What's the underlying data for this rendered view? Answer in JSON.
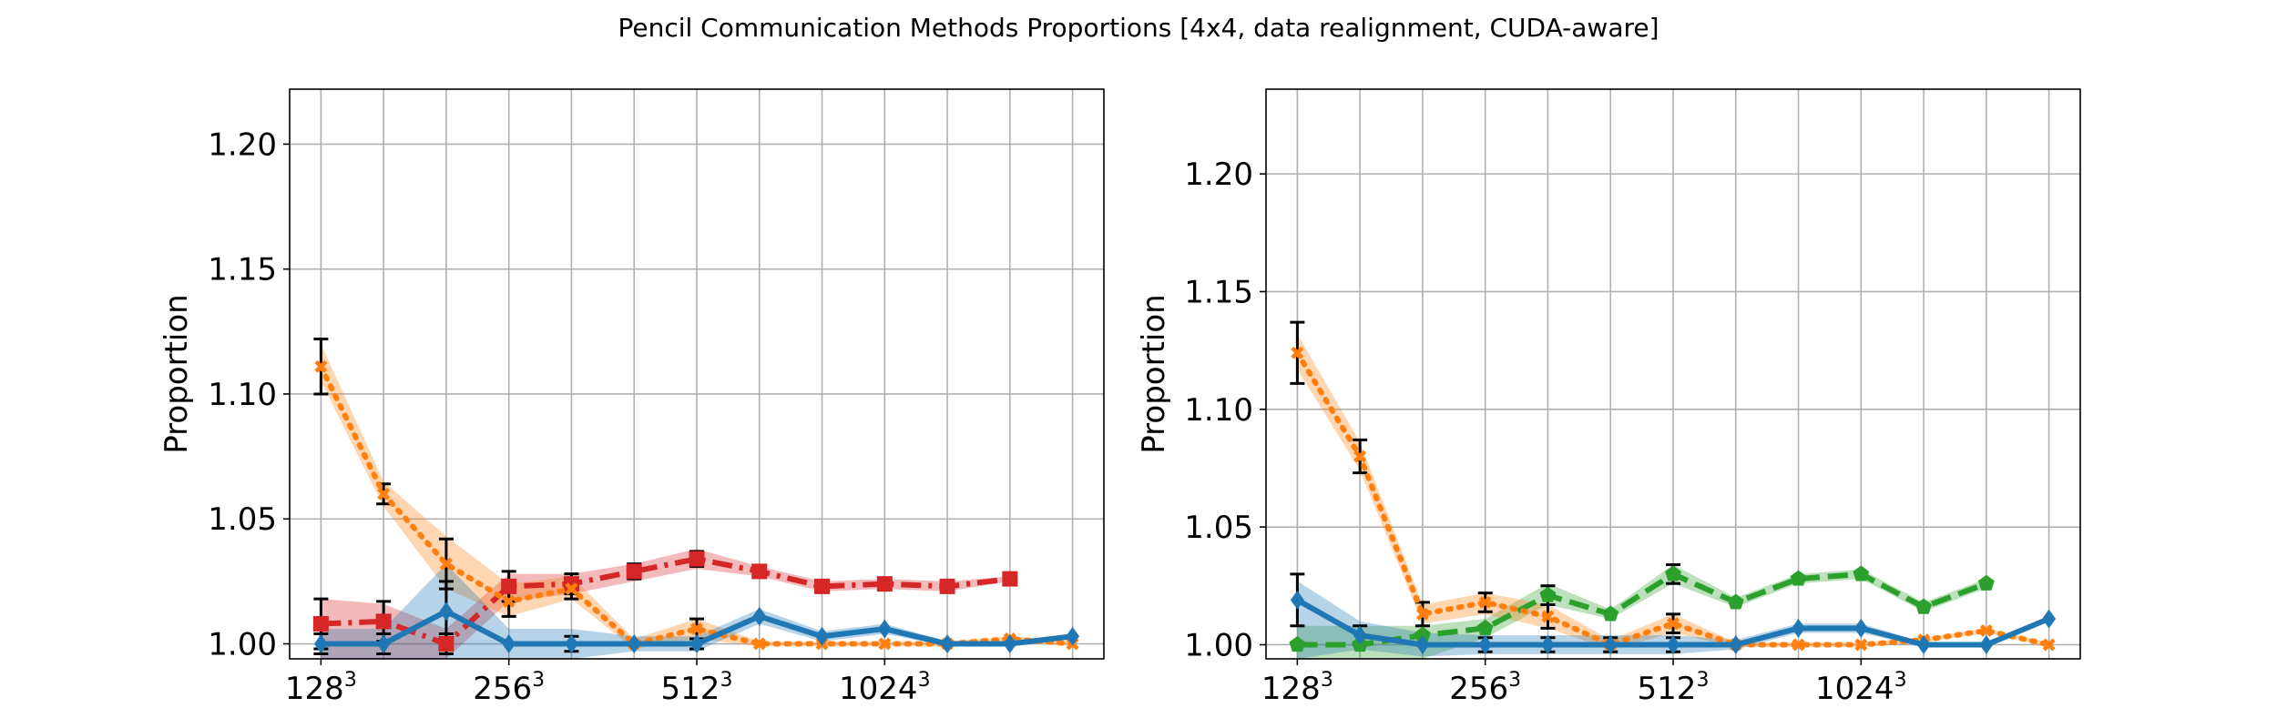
{
  "title": "Pencil Communication Methods Proportions [4x4, data realignment, CUDA-aware]",
  "chart_data": [
    {
      "type": "line",
      "ylabel": "Proportion",
      "ylim": [
        0.994,
        1.222
      ],
      "xlim": [
        -0.5,
        12.5
      ],
      "yticks": [
        "1.00",
        "1.05",
        "1.10",
        "1.15",
        "1.20"
      ],
      "ytick_values": [
        1.0,
        1.05,
        1.1,
        1.15,
        1.2
      ],
      "xticks": [
        {
          "base": "128",
          "exp": "3",
          "x": 0
        },
        {
          "base": "256",
          "exp": "3",
          "x": 3
        },
        {
          "base": "512",
          "exp": "3",
          "x": 6
        },
        {
          "base": "1024",
          "exp": "3",
          "x": 9
        }
      ],
      "grid": true,
      "series": [
        {
          "color": "#d62728",
          "linestyle": "dashdot",
          "marker": "square",
          "x": [
            0,
            1,
            2,
            3,
            4,
            5,
            6,
            7,
            8,
            9,
            10,
            11
          ],
          "values": [
            1.008,
            1.009,
            1.0,
            1.023,
            1.024,
            1.029,
            1.034,
            1.029,
            1.023,
            1.024,
            1.023,
            1.026
          ],
          "band_low": [
            0.994,
            0.994,
            0.994,
            1.017,
            1.02,
            1.025,
            1.03,
            1.027,
            1.021,
            1.022,
            1.021,
            1.025
          ],
          "band_high": [
            1.018,
            1.016,
            1.006,
            1.028,
            1.028,
            1.032,
            1.038,
            1.031,
            1.025,
            1.026,
            1.025,
            1.027
          ],
          "err": [
            0.01,
            0.008,
            0.004,
            0.006,
            0.004,
            0.003,
            0.003,
            0.0,
            0.0,
            0.0,
            0.0,
            0.0
          ]
        },
        {
          "color": "#ff7f0e",
          "linestyle": "dotted",
          "marker": "x",
          "x": [
            0,
            1,
            2,
            3,
            4,
            5,
            6,
            7,
            8,
            9,
            10,
            11,
            12
          ],
          "values": [
            1.111,
            1.06,
            1.032,
            1.017,
            1.022,
            1.0,
            1.006,
            1.0,
            1.0,
            1.0,
            1.0,
            1.002,
            1.0
          ],
          "band_low": [
            1.105,
            1.055,
            1.022,
            1.011,
            1.018,
            0.998,
            1.002,
            0.999,
            0.999,
            0.999,
            0.999,
            1.001,
            0.999
          ],
          "band_high": [
            1.12,
            1.065,
            1.043,
            1.024,
            1.027,
            1.002,
            1.01,
            1.001,
            1.001,
            1.001,
            1.001,
            1.003,
            1.001
          ],
          "err": [
            0.011,
            0.004,
            0.01,
            0.006,
            0.004,
            0.0,
            0.004,
            0.0,
            0.0,
            0.0,
            0.0,
            0.0,
            0.0
          ]
        },
        {
          "color": "#1f77b4",
          "linestyle": "solid",
          "marker": "diamond",
          "x": [
            0,
            1,
            2,
            3,
            4,
            5,
            6,
            7,
            8,
            9,
            10,
            11,
            12
          ],
          "values": [
            1.0,
            1.0,
            1.013,
            1.0,
            1.0,
            1.0,
            1.0,
            1.011,
            1.003,
            1.006,
            1.0,
            1.0,
            1.003
          ],
          "band_low": [
            0.994,
            0.994,
            0.994,
            0.994,
            0.994,
            0.997,
            0.997,
            1.008,
            1.001,
            1.004,
            0.999,
            0.999,
            1.002
          ],
          "band_high": [
            1.006,
            1.006,
            1.032,
            1.006,
            1.006,
            1.003,
            1.003,
            1.014,
            1.005,
            1.008,
            1.001,
            1.001,
            1.004
          ],
          "err": [
            0.004,
            0.004,
            0.012,
            0.0,
            0.003,
            0.0,
            0.002,
            0.0,
            0.0,
            0.0,
            0.0,
            0.0,
            0.0
          ]
        }
      ]
    },
    {
      "type": "line",
      "ylabel": "Proportion",
      "ylim": [
        0.994,
        1.236
      ],
      "xlim": [
        -0.5,
        12.5
      ],
      "yticks": [
        "1.00",
        "1.05",
        "1.10",
        "1.15",
        "1.20"
      ],
      "ytick_values": [
        1.0,
        1.05,
        1.1,
        1.15,
        1.2
      ],
      "xticks": [
        {
          "base": "128",
          "exp": "3",
          "x": 0
        },
        {
          "base": "256",
          "exp": "3",
          "x": 3
        },
        {
          "base": "512",
          "exp": "3",
          "x": 6
        },
        {
          "base": "1024",
          "exp": "3",
          "x": 9
        }
      ],
      "grid": true,
      "series": [
        {
          "color": "#2ca02c",
          "linestyle": "dashed",
          "marker": "pentagon",
          "x": [
            0,
            1,
            2,
            3,
            4,
            5,
            6,
            7,
            8,
            9,
            10,
            11
          ],
          "values": [
            1.0,
            1.0,
            1.004,
            1.007,
            1.021,
            1.013,
            1.03,
            1.018,
            1.028,
            1.03,
            1.016,
            1.026
          ],
          "band_low": [
            0.994,
            0.994,
            0.994,
            1.003,
            1.017,
            1.011,
            1.026,
            1.016,
            1.026,
            1.028,
            1.014,
            1.024
          ],
          "band_high": [
            1.008,
            1.008,
            1.008,
            1.011,
            1.026,
            1.015,
            1.034,
            1.02,
            1.03,
            1.032,
            1.018,
            1.028
          ],
          "err": [
            0.0,
            0.0,
            0.0,
            0.0,
            0.004,
            0.0,
            0.004,
            0.0,
            0.0,
            0.0,
            0.0,
            0.0
          ]
        },
        {
          "color": "#ff7f0e",
          "linestyle": "dotted",
          "marker": "x",
          "x": [
            0,
            1,
            2,
            3,
            4,
            5,
            6,
            7,
            8,
            9,
            10,
            11,
            12
          ],
          "values": [
            1.124,
            1.08,
            1.013,
            1.018,
            1.012,
            1.0,
            1.009,
            1.0,
            1.0,
            1.0,
            1.002,
            1.006,
            1.0
          ],
          "band_low": [
            1.117,
            1.074,
            1.009,
            1.013,
            1.007,
            0.998,
            1.005,
            0.999,
            0.999,
            0.999,
            1.001,
            1.005,
            0.999
          ],
          "band_high": [
            1.132,
            1.086,
            1.017,
            1.022,
            1.017,
            1.002,
            1.013,
            1.001,
            1.001,
            1.001,
            1.003,
            1.007,
            1.001
          ],
          "err": [
            0.013,
            0.007,
            0.005,
            0.004,
            0.005,
            0.0,
            0.004,
            0.0,
            0.0,
            0.0,
            0.0,
            0.0,
            0.0
          ]
        },
        {
          "color": "#1f77b4",
          "linestyle": "solid",
          "marker": "diamond",
          "x": [
            0,
            1,
            2,
            3,
            4,
            5,
            6,
            7,
            8,
            9,
            10,
            11,
            12
          ],
          "values": [
            1.019,
            1.004,
            1.0,
            1.0,
            1.0,
            1.0,
            1.0,
            1.0,
            1.007,
            1.007,
            1.0,
            1.0,
            1.011
          ],
          "band_low": [
            0.994,
            0.998,
            0.995,
            0.996,
            0.996,
            0.996,
            0.996,
            0.998,
            1.005,
            1.005,
            0.999,
            0.999,
            1.01
          ],
          "band_high": [
            1.027,
            1.01,
            1.005,
            1.004,
            1.004,
            1.004,
            1.004,
            1.002,
            1.009,
            1.009,
            1.001,
            1.001,
            1.012
          ],
          "err": [
            0.011,
            0.004,
            0.0,
            0.003,
            0.003,
            0.003,
            0.003,
            0.0,
            0.0,
            0.0,
            0.0,
            0.0,
            0.0
          ]
        }
      ]
    }
  ]
}
